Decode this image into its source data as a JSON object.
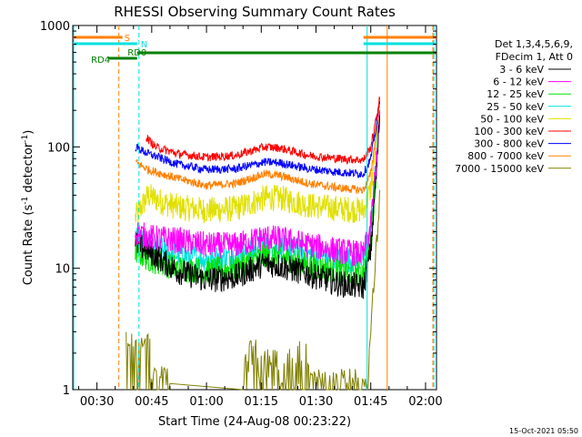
{
  "chart_data": {
    "type": "line",
    "title": "RHESSI Observing Summary Count Rates",
    "xlabel": "Start Time (24-Aug-08 00:23:22)",
    "ylabel_main": "Count Rate (s",
    "ylabel_sup1": "-1",
    "ylabel_mid": " detector",
    "ylabel_sup2": "-1",
    "ylabel_end": ")",
    "y_scale": "log",
    "ylim": [
      1,
      1000
    ],
    "xlim_minutes": [
      23.37,
      123.0
    ],
    "y_tick_labels": [
      "1",
      "10",
      "100",
      "1000"
    ],
    "x_ticks": [
      {
        "m": 30,
        "label": "00:30"
      },
      {
        "m": 45,
        "label": "00:45"
      },
      {
        "m": 60,
        "label": "01:00"
      },
      {
        "m": 75,
        "label": "01:15"
      },
      {
        "m": 90,
        "label": "01:30"
      },
      {
        "m": 105,
        "label": "01:45"
      },
      {
        "m": 120,
        "label": "02:00"
      }
    ],
    "legend_header": [
      "Det 1,3,4,5,6,9,",
      "FDecim 1, Att 0"
    ],
    "timestamp": "15-Oct-2021 05:50",
    "series": [
      {
        "name": "3 - 6 keV",
        "color": "#000000",
        "anchors": [
          [
            40.5,
            16
          ],
          [
            44,
            14
          ],
          [
            52,
            9.5
          ],
          [
            60,
            8
          ],
          [
            68,
            8.5
          ],
          [
            76,
            11
          ],
          [
            80,
            10.5
          ],
          [
            88,
            9
          ],
          [
            96,
            7.5
          ],
          [
            103,
            7
          ],
          [
            105,
            14
          ],
          [
            106.5,
            60
          ],
          [
            107.5,
            200
          ]
        ]
      },
      {
        "name": "6 - 12 keV",
        "color": "#ff00ff",
        "anchors": [
          [
            40.5,
            20
          ],
          [
            44,
            18
          ],
          [
            52,
            17
          ],
          [
            60,
            15.5
          ],
          [
            68,
            15.5
          ],
          [
            76,
            18
          ],
          [
            80,
            17.5
          ],
          [
            88,
            15.5
          ],
          [
            96,
            14
          ],
          [
            103,
            13
          ],
          [
            105,
            22
          ],
          [
            106.5,
            80
          ],
          [
            107.5,
            220
          ]
        ]
      },
      {
        "name": "12 - 25 keV",
        "color": "#00e000",
        "anchors": [
          [
            40.5,
            14
          ],
          [
            44,
            12
          ],
          [
            52,
            10
          ],
          [
            60,
            9.5
          ],
          [
            68,
            10
          ],
          [
            76,
            13
          ],
          [
            80,
            12.5
          ],
          [
            88,
            10.5
          ],
          [
            96,
            9.5
          ],
          [
            103,
            9
          ],
          [
            105,
            16
          ],
          [
            106.5,
            65
          ],
          [
            107.5,
            210
          ]
        ]
      },
      {
        "name": "25 - 50 keV",
        "color": "#00e0e0",
        "anchors": [
          [
            40.5,
            18
          ],
          [
            44,
            15
          ],
          [
            52,
            13
          ],
          [
            60,
            12
          ],
          [
            68,
            12.5
          ],
          [
            76,
            15.5
          ],
          [
            80,
            15
          ],
          [
            88,
            13
          ],
          [
            96,
            12
          ],
          [
            103,
            11.5
          ],
          [
            105,
            20
          ],
          [
            106.5,
            75
          ],
          [
            107.5,
            215
          ]
        ]
      },
      {
        "name": "50 - 100 keV",
        "color": "#e0e000",
        "anchors": [
          [
            40.5,
            26
          ],
          [
            44,
            40
          ],
          [
            48,
            35
          ],
          [
            52,
            32
          ],
          [
            60,
            30
          ],
          [
            68,
            31
          ],
          [
            76,
            38
          ],
          [
            80,
            38
          ],
          [
            88,
            33
          ],
          [
            96,
            31
          ],
          [
            103,
            30
          ],
          [
            105,
            45
          ],
          [
            106.5,
            110
          ],
          [
            107.5,
            230
          ]
        ]
      },
      {
        "name": "100 - 300 keV",
        "color": "#ff0000",
        "anchors": [
          [
            43.5,
            120
          ],
          [
            46,
            100
          ],
          [
            52,
            88
          ],
          [
            60,
            82
          ],
          [
            68,
            85
          ],
          [
            76,
            100
          ],
          [
            80,
            98
          ],
          [
            88,
            85
          ],
          [
            96,
            80
          ],
          [
            103,
            78
          ],
          [
            105,
            100
          ],
          [
            106.5,
            170
          ],
          [
            107.5,
            260
          ]
        ]
      },
      {
        "name": "300 - 800 keV",
        "color": "#0000ff",
        "anchors": [
          [
            40.5,
            100
          ],
          [
            44,
            88
          ],
          [
            52,
            72
          ],
          [
            60,
            65
          ],
          [
            68,
            66
          ],
          [
            76,
            75
          ],
          [
            80,
            74
          ],
          [
            88,
            66
          ],
          [
            96,
            62
          ],
          [
            103,
            60
          ],
          [
            105,
            80
          ],
          [
            106.5,
            150
          ],
          [
            107.5,
            250
          ]
        ]
      },
      {
        "name": "800 - 7000 keV",
        "color": "#ff8000",
        "anchors": [
          [
            40.5,
            75
          ],
          [
            44,
            65
          ],
          [
            52,
            55
          ],
          [
            60,
            48
          ],
          [
            68,
            50
          ],
          [
            76,
            60
          ],
          [
            80,
            58
          ],
          [
            88,
            50
          ],
          [
            96,
            46
          ],
          [
            103,
            44
          ],
          [
            105,
            60
          ],
          [
            106.5,
            130
          ],
          [
            107.5,
            240
          ]
        ]
      },
      {
        "name": "7000 - 15000 keV",
        "color": "#808000",
        "anchors": []
      }
    ],
    "flags": [
      {
        "label": "S",
        "color": "#ff8000"
      },
      {
        "label": "N",
        "color": "#00e0e0"
      },
      {
        "label": "RD0",
        "color": "#008000"
      },
      {
        "label": "RD4",
        "color": "#008000"
      }
    ],
    "vertical_lines": [
      {
        "m": 36.0,
        "color": "#ff8000",
        "dash": true
      },
      {
        "m": 41.5,
        "color": "#00e0e0",
        "dash": true
      },
      {
        "m": 104.0,
        "color": "#00e0e0",
        "dash": false
      },
      {
        "m": 109.5,
        "color": "#ff8000",
        "dash": false
      },
      {
        "m": 122.0,
        "color": "#ff8000",
        "dash": true
      },
      {
        "m": 122.3,
        "color": "#00e0e0",
        "dash": true
      }
    ]
  }
}
